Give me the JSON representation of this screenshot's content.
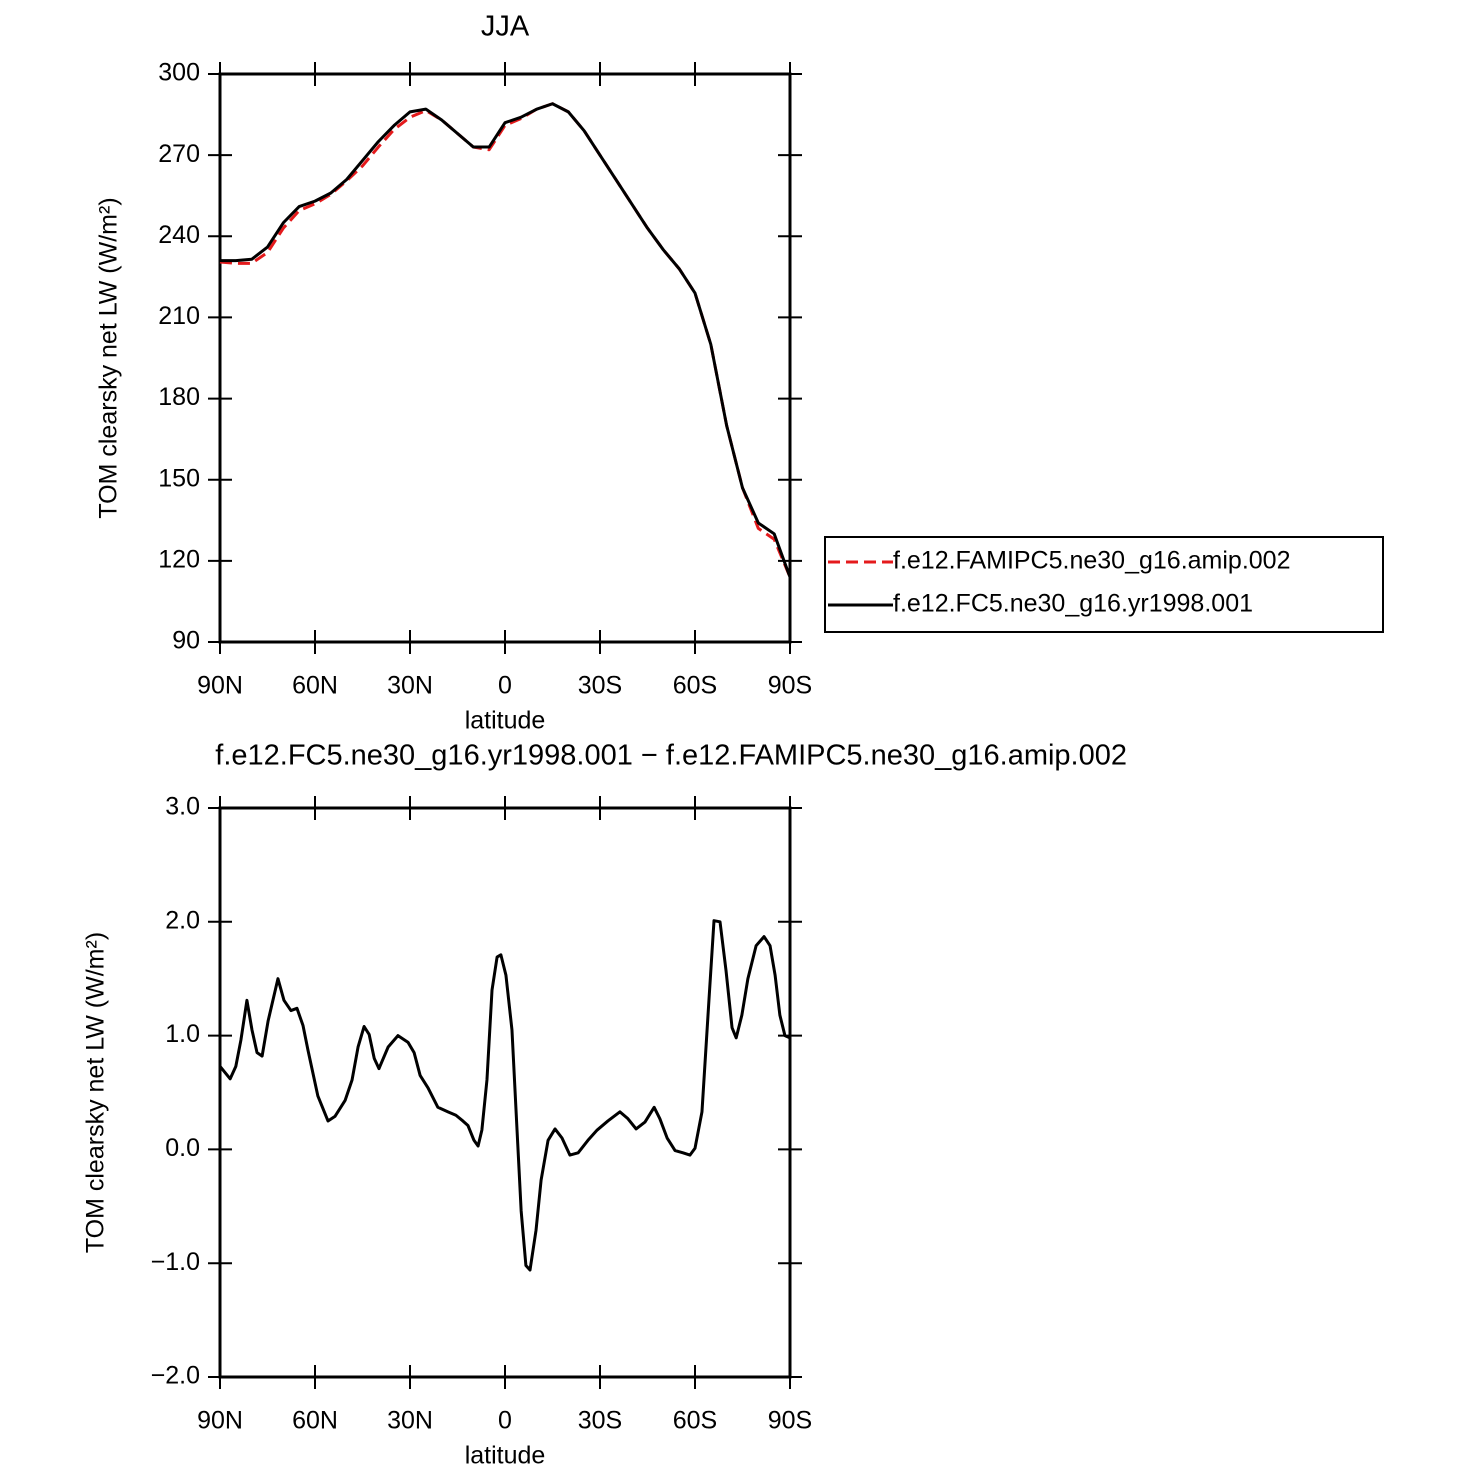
{
  "chart_data": [
    {
      "type": "line",
      "title": "JJA",
      "xlabel": "latitude",
      "ylabel": "TOM clearsky net LW (W/m²)",
      "xlim": [
        90,
        -90
      ],
      "xticks": [
        {
          "value": 90,
          "label": "90N"
        },
        {
          "value": 60,
          "label": "60N"
        },
        {
          "value": 30,
          "label": "30N"
        },
        0,
        {
          "value": -30,
          "label": "30S"
        },
        {
          "value": -60,
          "label": "60S"
        },
        {
          "value": -90,
          "label": "90S"
        }
      ],
      "ylim": [
        90,
        300
      ],
      "yticks": [
        90,
        120,
        150,
        180,
        210,
        240,
        270,
        300
      ],
      "legend": "outside-right",
      "x": [
        90,
        85,
        80,
        75,
        70,
        65,
        60,
        55,
        50,
        45,
        40,
        35,
        30,
        25,
        20,
        15,
        10,
        5,
        0,
        -5,
        -10,
        -15,
        -20,
        -25,
        -30,
        -35,
        -40,
        -45,
        -50,
        -55,
        -60,
        -65,
        -70,
        -75,
        -80,
        -85,
        -90
      ],
      "series": [
        {
          "name": "f.e12.FAMIPC5.ne30_g16.amip.002",
          "color": "#e41a1c",
          "dash": "dashed",
          "values": [
            230.5,
            230,
            230,
            234,
            243,
            249.5,
            252,
            255.5,
            260.5,
            266,
            273,
            279.5,
            284,
            286.5,
            283,
            278,
            273,
            272,
            281,
            283.5,
            287,
            289,
            286,
            279,
            270,
            261,
            252,
            243,
            235,
            228,
            219,
            200,
            170,
            147,
            132,
            128,
            114
          ]
        },
        {
          "name": "f.e12.FC5.ne30_g16.yr1998.001",
          "color": "#000000",
          "dash": "solid",
          "values": [
            231,
            231,
            231.5,
            236,
            245,
            251,
            253,
            256,
            261,
            268,
            275,
            281,
            286,
            287,
            283,
            278,
            273,
            273,
            282,
            284,
            287,
            289,
            286,
            279,
            270,
            261,
            252,
            243,
            235,
            228,
            219,
            200,
            170,
            147,
            134,
            130,
            114
          ]
        }
      ]
    },
    {
      "type": "line",
      "title": "f.e12.FC5.ne30_g16.yr1998.001 − f.e12.FAMIPC5.ne30_g16.amip.002",
      "xlabel": "latitude",
      "ylabel": "TOM clearsky net LW (W/m²)",
      "xlim": [
        90,
        -90
      ],
      "xticks": [
        {
          "value": 90,
          "label": "90N"
        },
        {
          "value": 60,
          "label": "60N"
        },
        {
          "value": 30,
          "label": "30N"
        },
        0,
        {
          "value": -30,
          "label": "30S"
        },
        {
          "value": -60,
          "label": "60S"
        },
        {
          "value": -90,
          "label": "90S"
        }
      ],
      "ylim": [
        -2,
        3
      ],
      "yticks": [
        {
          "value": -2,
          "label": "−2.0"
        },
        {
          "value": -1,
          "label": "−1.0"
        },
        {
          "value": 0,
          "label": "0.0"
        },
        {
          "value": 1,
          "label": "1.0"
        },
        {
          "value": 2,
          "label": "2.0"
        },
        {
          "value": 3,
          "label": "3.0"
        }
      ],
      "x": [
        90,
        86.8,
        85,
        83.4,
        81.5,
        79.9,
        78.3,
        76.7,
        74.8,
        71.7,
        69.8,
        67.6,
        65.7,
        63.8,
        62.2,
        59.1,
        55.9,
        53.7,
        50.5,
        48.3,
        46.4,
        44.5,
        42.9,
        41.3,
        39.8,
        36.9,
        33.8,
        30.6,
        28.7,
        26.8,
        24.3,
        21.2,
        18,
        15.5,
        13.3,
        11.7,
        9.8,
        8.5,
        7.3,
        5.7,
        4.1,
        2.5,
        1.3,
        -0.3,
        -2.2,
        -3.8,
        -5.1,
        -6.6,
        -7.9,
        -9.8,
        -11.4,
        -13.6,
        -15.8,
        -18,
        -20.5,
        -23.1,
        -26.2,
        -29.1,
        -32.5,
        -36.3,
        -38.8,
        -41.4,
        -44.2,
        -47.1,
        -48.9,
        -51.2,
        -53.7,
        -56.2,
        -58.4,
        -60,
        -62.2,
        -64.4,
        -66,
        -67.9,
        -69.8,
        -71.7,
        -73,
        -74.8,
        -76.7,
        -79.3,
        -81.8,
        -83.7,
        -85.3,
        -86.8,
        -88.4,
        -90
      ],
      "series": [
        {
          "color": "#000000",
          "dash": "solid",
          "values": [
            0.73,
            0.62,
            0.73,
            0.96,
            1.31,
            1.05,
            0.85,
            0.82,
            1.13,
            1.5,
            1.31,
            1.22,
            1.24,
            1.09,
            0.87,
            0.47,
            0.25,
            0.29,
            0.43,
            0.61,
            0.9,
            1.08,
            1.01,
            0.8,
            0.71,
            0.9,
            1.0,
            0.94,
            0.85,
            0.65,
            0.54,
            0.37,
            0.33,
            0.3,
            0.25,
            0.21,
            0.08,
            0.03,
            0.17,
            0.61,
            1.4,
            1.69,
            1.71,
            1.53,
            1.05,
            0.17,
            -0.54,
            -1.02,
            -1.06,
            -0.71,
            -0.27,
            0.08,
            0.18,
            0.1,
            -0.05,
            -0.03,
            0.08,
            0.17,
            0.25,
            0.33,
            0.27,
            0.18,
            0.24,
            0.37,
            0.27,
            0.1,
            -0.01,
            -0.03,
            -0.05,
            0.01,
            0.33,
            1.31,
            2.01,
            2.0,
            1.57,
            1.07,
            0.98,
            1.18,
            1.5,
            1.79,
            1.87,
            1.79,
            1.53,
            1.18,
            1.0,
            0.98
          ]
        }
      ]
    }
  ]
}
